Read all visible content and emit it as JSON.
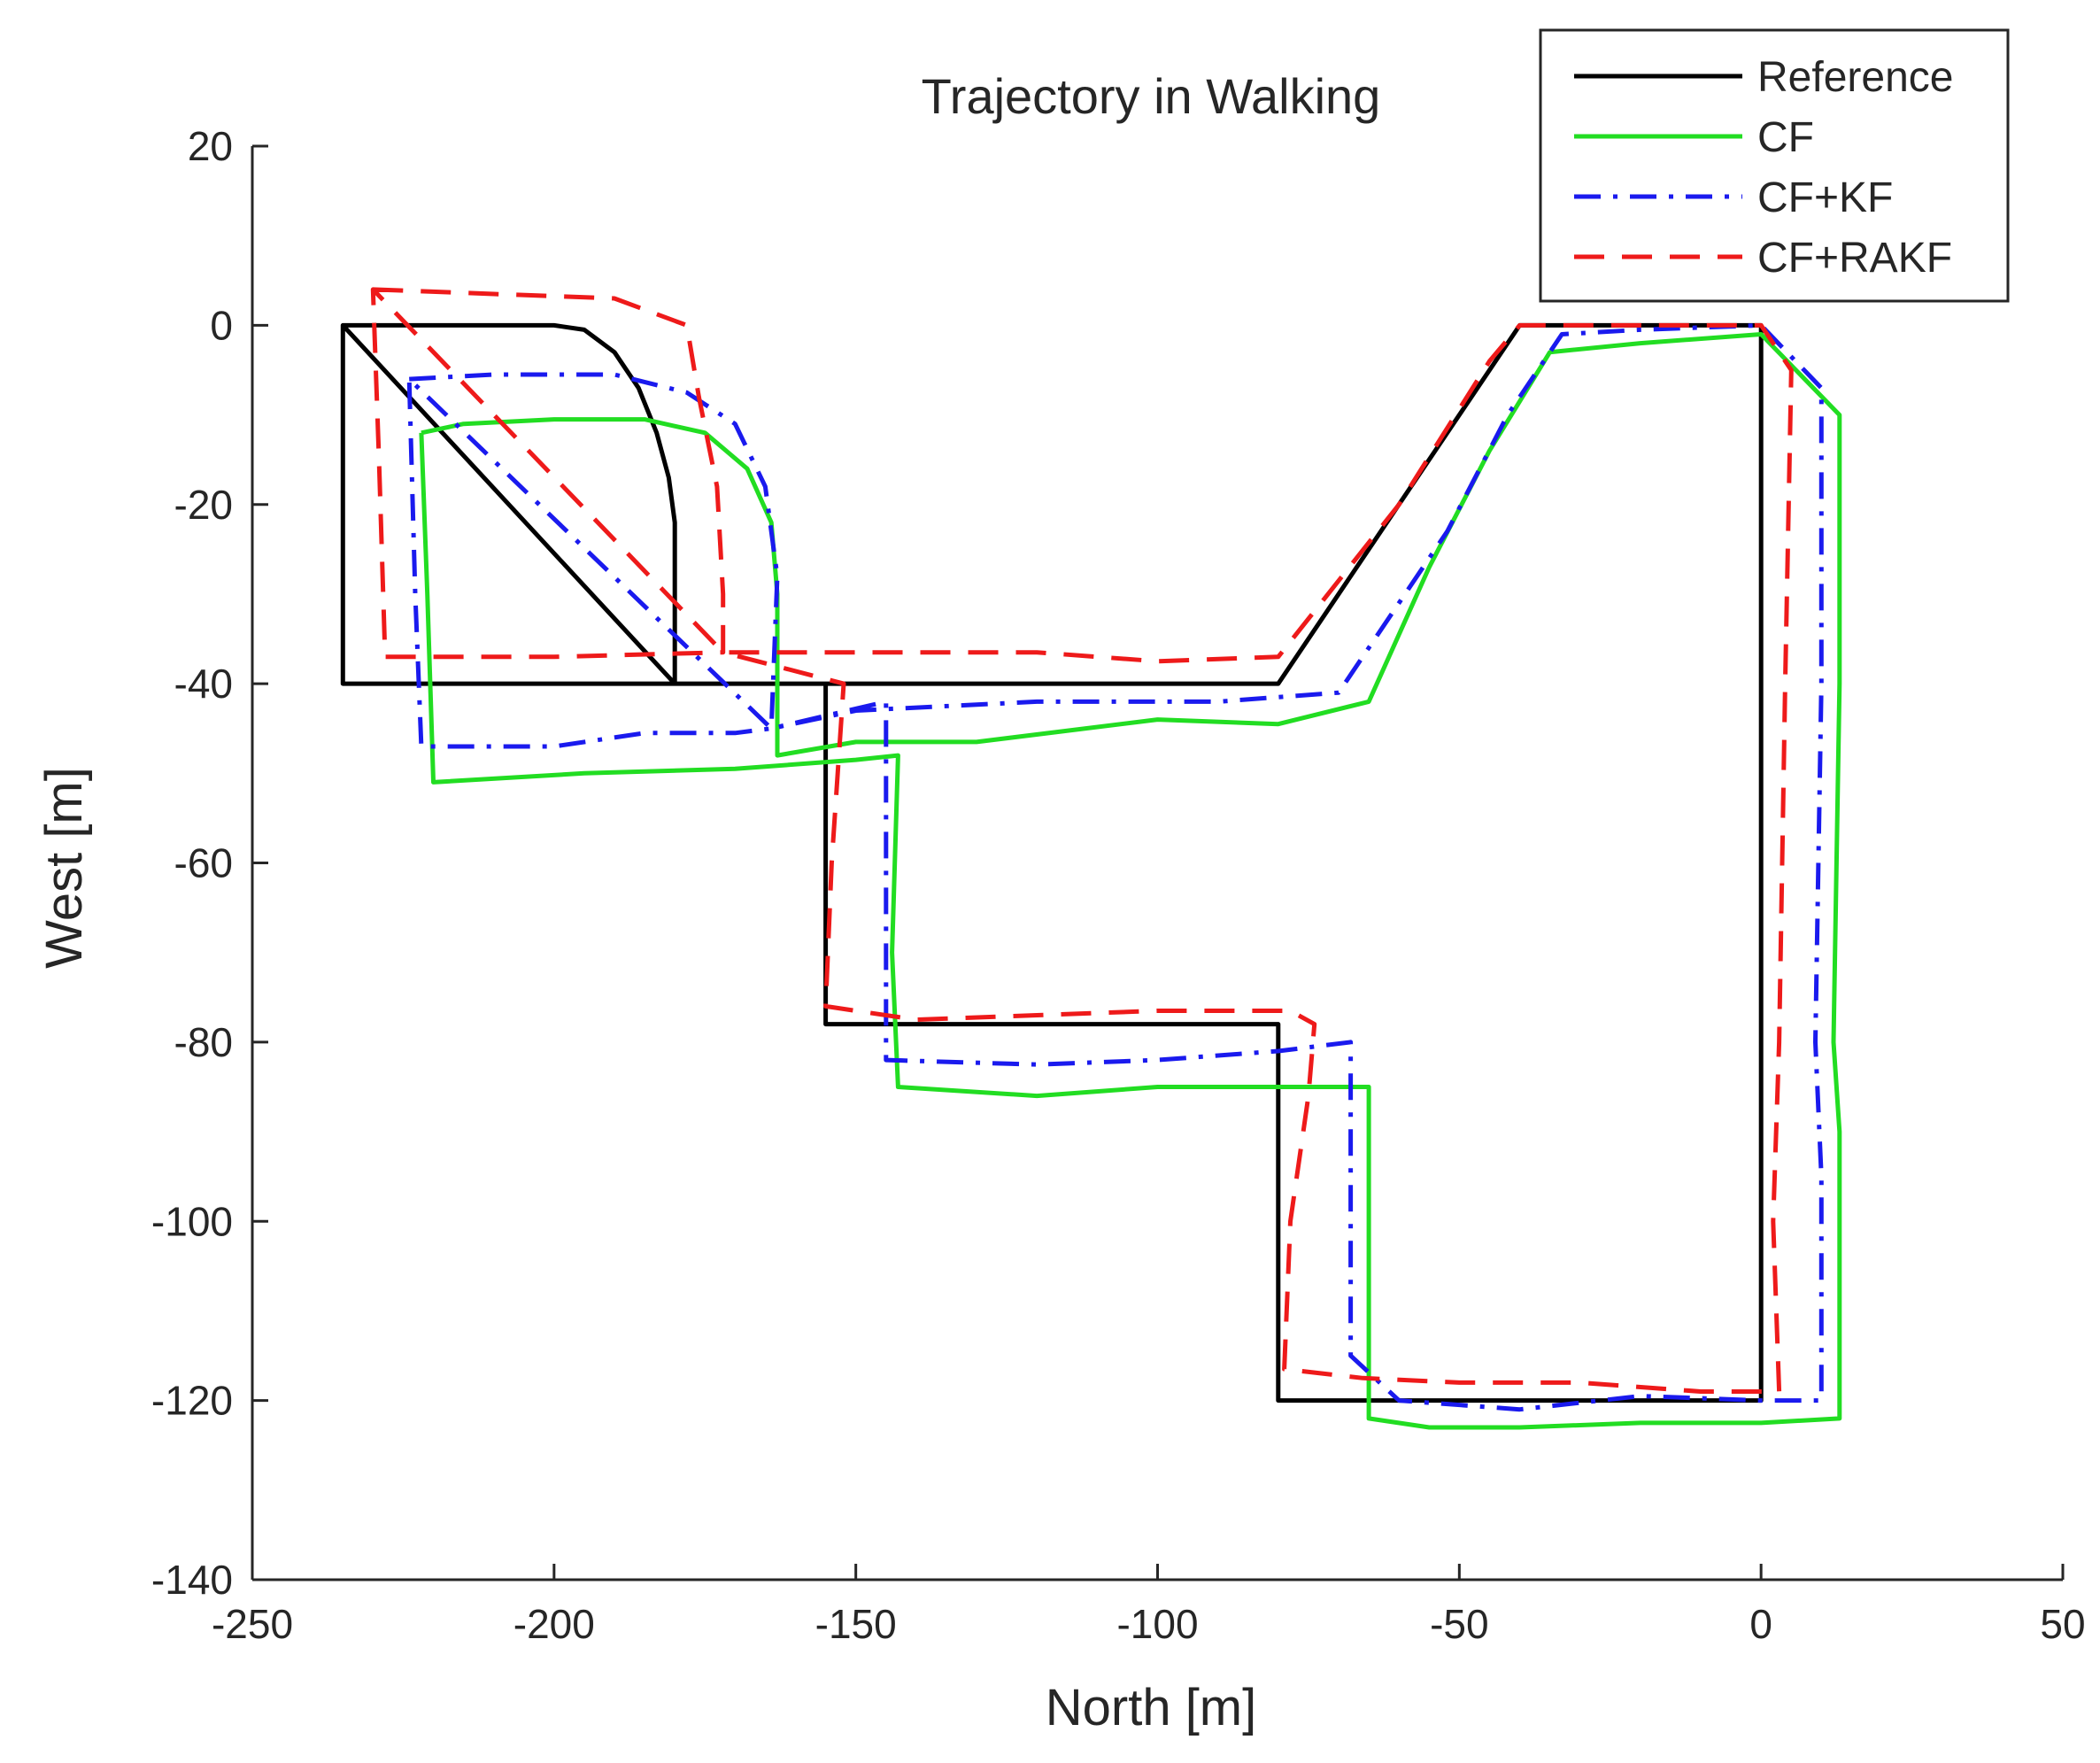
{
  "chart_data": {
    "type": "line",
    "title": "Trajectory in Walking",
    "xlabel": "North [m]",
    "ylabel": "West [m]",
    "xlim": [
      -250,
      50
    ],
    "ylim": [
      -140,
      20
    ],
    "xticks": [
      -250,
      -200,
      -150,
      -100,
      -50,
      0,
      50
    ],
    "yticks": [
      20,
      0,
      -20,
      -40,
      -60,
      -80,
      -100,
      -120,
      -140
    ],
    "grid": false,
    "legend_position": "top-right",
    "series": [
      {
        "name": "Reference",
        "color": "#000000",
        "style": "solid",
        "points": [
          [
            -235,
            0
          ],
          [
            -200,
            0
          ],
          [
            -195,
            -0.5
          ],
          [
            -190,
            -3
          ],
          [
            -186,
            -7
          ],
          [
            -183,
            -12
          ],
          [
            -181,
            -17
          ],
          [
            -180,
            -22
          ],
          [
            -180,
            -40
          ],
          [
            -235,
            -40
          ],
          [
            -235,
            0
          ],
          [
            -180,
            -40
          ],
          [
            -155,
            -40
          ],
          [
            -155,
            -78
          ],
          [
            -80,
            -78
          ],
          [
            -80,
            -120
          ],
          [
            0,
            -120
          ],
          [
            0,
            0
          ],
          [
            -40,
            0
          ],
          [
            -80,
            -40
          ],
          [
            -155,
            -40
          ]
        ]
      },
      {
        "name": "CF",
        "color": "#22dd22",
        "style": "solid",
        "points": [
          [
            -222,
            -12
          ],
          [
            -215,
            -11
          ],
          [
            -200,
            -10.5
          ],
          [
            -185,
            -10.5
          ],
          [
            -175,
            -12
          ],
          [
            -168,
            -16
          ],
          [
            -164,
            -22
          ],
          [
            -163,
            -30
          ],
          [
            -163,
            -48
          ],
          [
            -150,
            -46.5
          ],
          [
            -130,
            -46.5
          ],
          [
            -100,
            -44
          ],
          [
            -80,
            -44.5
          ],
          [
            -65,
            -42
          ],
          [
            -55,
            -27
          ],
          [
            -45,
            -14
          ],
          [
            -35,
            -3
          ],
          [
            -20,
            -2
          ],
          [
            0,
            -1
          ],
          [
            13,
            -10
          ],
          [
            13,
            -40
          ],
          [
            12,
            -80
          ],
          [
            13,
            -90
          ],
          [
            13,
            -122
          ],
          [
            0,
            -122.5
          ],
          [
            -20,
            -122.5
          ],
          [
            -40,
            -123
          ],
          [
            -55,
            -123
          ],
          [
            -65,
            -122
          ],
          [
            -65,
            -85
          ],
          [
            -100,
            -85
          ],
          [
            -120,
            -86
          ],
          [
            -143,
            -85
          ],
          [
            -144,
            -70
          ],
          [
            -143,
            -48
          ],
          [
            -150,
            -48.5
          ],
          [
            -170,
            -49.5
          ],
          [
            -195,
            -50
          ],
          [
            -220,
            -51
          ],
          [
            -221,
            -30
          ],
          [
            -222,
            -12
          ]
        ]
      },
      {
        "name": "CF+KF",
        "color": "#1a1aee",
        "style": "dashdot",
        "points": [
          [
            -224,
            -6
          ],
          [
            -210,
            -5.5
          ],
          [
            -190,
            -5.5
          ],
          [
            -178,
            -7.5
          ],
          [
            -170,
            -11
          ],
          [
            -165,
            -18
          ],
          [
            -163,
            -28
          ],
          [
            -164,
            -45
          ],
          [
            -170,
            -45.5
          ],
          [
            -185,
            -45.5
          ],
          [
            -200,
            -47
          ],
          [
            -215,
            -47
          ],
          [
            -222,
            -47
          ],
          [
            -223,
            -30
          ],
          [
            -224,
            -6
          ],
          [
            -164,
            -45
          ],
          [
            -150,
            -43
          ],
          [
            -120,
            -42
          ],
          [
            -90,
            -42
          ],
          [
            -70,
            -41
          ],
          [
            -52,
            -23
          ],
          [
            -42,
            -10
          ],
          [
            -33,
            -1
          ],
          [
            -20,
            -0.5
          ],
          [
            0,
            0
          ],
          [
            10,
            -7
          ],
          [
            10,
            -40
          ],
          [
            9,
            -80
          ],
          [
            10,
            -95
          ],
          [
            10,
            -120
          ],
          [
            0,
            -120
          ],
          [
            -20,
            -119.5
          ],
          [
            -40,
            -121
          ],
          [
            -60,
            -120
          ],
          [
            -68,
            -115
          ],
          [
            -68,
            -80
          ],
          [
            -80,
            -81
          ],
          [
            -100,
            -82
          ],
          [
            -120,
            -82.5
          ],
          [
            -145,
            -82
          ],
          [
            -145,
            -65
          ],
          [
            -145,
            -42
          ],
          [
            -164,
            -45
          ]
        ]
      },
      {
        "name": "CF+RAKF",
        "color": "#ee1a1a",
        "style": "dashed",
        "points": [
          [
            -230,
            4
          ],
          [
            -210,
            3.5
          ],
          [
            -190,
            3
          ],
          [
            -178,
            0
          ],
          [
            -176,
            -8
          ],
          [
            -173,
            -18
          ],
          [
            -172,
            -30
          ],
          [
            -172,
            -36.5
          ],
          [
            -200,
            -37
          ],
          [
            -218,
            -37
          ],
          [
            -228,
            -37
          ],
          [
            -229,
            -15
          ],
          [
            -230,
            4
          ],
          [
            -172,
            -36.5
          ],
          [
            -150,
            -36.5
          ],
          [
            -120,
            -36.5
          ],
          [
            -100,
            -37.5
          ],
          [
            -80,
            -37
          ],
          [
            -60,
            -20
          ],
          [
            -45,
            -4
          ],
          [
            -40,
            0
          ],
          [
            -20,
            0
          ],
          [
            0,
            0
          ],
          [
            5,
            -5
          ],
          [
            4,
            -40
          ],
          [
            3,
            -80
          ],
          [
            2,
            -100
          ],
          [
            3,
            -119
          ],
          [
            -10,
            -119
          ],
          [
            -30,
            -118
          ],
          [
            -50,
            -118
          ],
          [
            -66,
            -117.5
          ],
          [
            -79,
            -116.5
          ],
          [
            -78,
            -100
          ],
          [
            -75,
            -86
          ],
          [
            -74,
            -78
          ],
          [
            -78,
            -76.5
          ],
          [
            -100,
            -76.5
          ],
          [
            -120,
            -77
          ],
          [
            -140,
            -77.5
          ],
          [
            -155,
            -76
          ],
          [
            -154,
            -60
          ],
          [
            -152,
            -40
          ],
          [
            -172,
            -36.5
          ]
        ]
      }
    ]
  }
}
